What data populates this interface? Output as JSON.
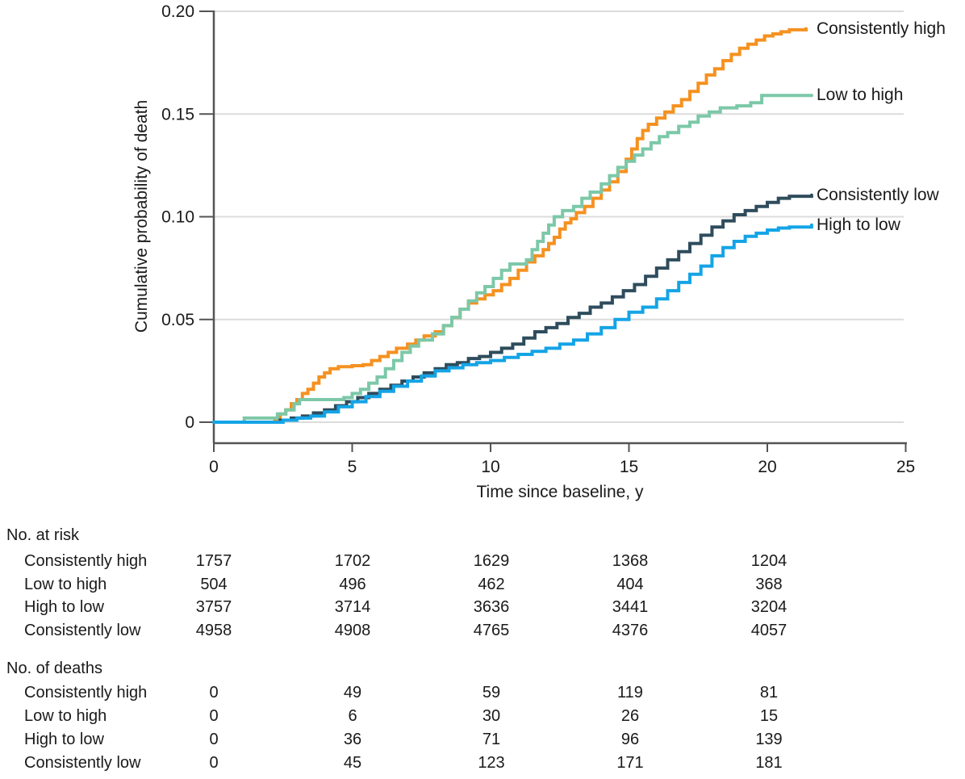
{
  "figure": {
    "y_axis": {
      "title": "Cumulative probability of death",
      "ticks": [
        "0",
        "0.05",
        "0.10",
        "0.15",
        "0.20"
      ],
      "tick_values": [
        0,
        0.05,
        0.1,
        0.15,
        0.2
      ],
      "max": 0.2
    },
    "x_axis": {
      "title": "Time since baseline, y",
      "ticks": [
        "0",
        "5",
        "10",
        "15",
        "20",
        "25"
      ],
      "tick_values": [
        0,
        5,
        10,
        15,
        20,
        25
      ],
      "max": 25
    }
  },
  "chart_data": {
    "type": "line",
    "subtype": "kaplan-meier-cumulative-incidence-step",
    "title": "",
    "xlabel": "Time since baseline, y",
    "ylabel": "Cumulative probability of death",
    "xlim": [
      0,
      25
    ],
    "ylim": [
      0,
      0.2
    ],
    "x_ticks": [
      0,
      5,
      10,
      15,
      20,
      25
    ],
    "y_ticks": [
      0,
      0.05,
      0.1,
      0.15,
      0.2
    ],
    "grid": "horizontal",
    "grid_color": "#dcdcdc",
    "axis_color": "#545456",
    "legend_position": "right-end-labels",
    "series": [
      {
        "name": "Consistently high",
        "color": "#F59120",
        "points": [
          [
            0,
            0
          ],
          [
            2.2,
            0.001
          ],
          [
            2.4,
            0.004
          ],
          [
            2.6,
            0.006
          ],
          [
            2.8,
            0.009
          ],
          [
            3.0,
            0.011
          ],
          [
            3.2,
            0.014
          ],
          [
            3.4,
            0.016
          ],
          [
            3.6,
            0.019
          ],
          [
            3.8,
            0.022
          ],
          [
            4.0,
            0.024
          ],
          [
            4.2,
            0.026
          ],
          [
            4.5,
            0.027
          ],
          [
            5.0,
            0.0275
          ],
          [
            5.4,
            0.028
          ],
          [
            5.7,
            0.03
          ],
          [
            6.0,
            0.032
          ],
          [
            6.3,
            0.034
          ],
          [
            6.6,
            0.036
          ],
          [
            7.0,
            0.038
          ],
          [
            7.3,
            0.04
          ],
          [
            7.6,
            0.042
          ],
          [
            8.0,
            0.044
          ],
          [
            8.3,
            0.047
          ],
          [
            8.6,
            0.051
          ],
          [
            8.9,
            0.055
          ],
          [
            9.2,
            0.058
          ],
          [
            9.5,
            0.06
          ],
          [
            9.8,
            0.062
          ],
          [
            10.1,
            0.064
          ],
          [
            10.4,
            0.067
          ],
          [
            10.7,
            0.07
          ],
          [
            11.0,
            0.074
          ],
          [
            11.3,
            0.078
          ],
          [
            11.6,
            0.081
          ],
          [
            11.9,
            0.084
          ],
          [
            12.1,
            0.087
          ],
          [
            12.3,
            0.09
          ],
          [
            12.5,
            0.094
          ],
          [
            12.7,
            0.097
          ],
          [
            12.9,
            0.099
          ],
          [
            13.1,
            0.102
          ],
          [
            13.4,
            0.105
          ],
          [
            13.7,
            0.109
          ],
          [
            14.0,
            0.113
          ],
          [
            14.3,
            0.117
          ],
          [
            14.6,
            0.122
          ],
          [
            14.9,
            0.128
          ],
          [
            15.1,
            0.133
          ],
          [
            15.3,
            0.138
          ],
          [
            15.5,
            0.142
          ],
          [
            15.7,
            0.145
          ],
          [
            16.0,
            0.148
          ],
          [
            16.3,
            0.151
          ],
          [
            16.6,
            0.154
          ],
          [
            16.9,
            0.157
          ],
          [
            17.2,
            0.161
          ],
          [
            17.5,
            0.165
          ],
          [
            17.8,
            0.169
          ],
          [
            18.1,
            0.172
          ],
          [
            18.4,
            0.176
          ],
          [
            18.7,
            0.179
          ],
          [
            19.0,
            0.182
          ],
          [
            19.3,
            0.184
          ],
          [
            19.6,
            0.186
          ],
          [
            19.9,
            0.188
          ],
          [
            20.2,
            0.189
          ],
          [
            20.5,
            0.19
          ],
          [
            20.8,
            0.191
          ],
          [
            21.4,
            0.1915
          ]
        ]
      },
      {
        "name": "Low to high",
        "color": "#7CC8A8",
        "points": [
          [
            0,
            0
          ],
          [
            1.1,
            0.002
          ],
          [
            2.3,
            0.004
          ],
          [
            2.6,
            0.006
          ],
          [
            2.9,
            0.009
          ],
          [
            3.1,
            0.011
          ],
          [
            4.7,
            0.012
          ],
          [
            5.0,
            0.014
          ],
          [
            5.3,
            0.016
          ],
          [
            5.6,
            0.019
          ],
          [
            5.9,
            0.022
          ],
          [
            6.2,
            0.026
          ],
          [
            6.5,
            0.03
          ],
          [
            6.8,
            0.034
          ],
          [
            7.1,
            0.037
          ],
          [
            7.4,
            0.04
          ],
          [
            7.9,
            0.043
          ],
          [
            8.3,
            0.047
          ],
          [
            8.6,
            0.051
          ],
          [
            8.9,
            0.055
          ],
          [
            9.2,
            0.059
          ],
          [
            9.5,
            0.063
          ],
          [
            9.8,
            0.066
          ],
          [
            10.1,
            0.07
          ],
          [
            10.4,
            0.074
          ],
          [
            10.7,
            0.077
          ],
          [
            11.3,
            0.079
          ],
          [
            11.5,
            0.084
          ],
          [
            11.7,
            0.088
          ],
          [
            11.9,
            0.092
          ],
          [
            12.1,
            0.096
          ],
          [
            12.3,
            0.1
          ],
          [
            12.6,
            0.103
          ],
          [
            13.0,
            0.105
          ],
          [
            13.3,
            0.109
          ],
          [
            13.6,
            0.112
          ],
          [
            14.0,
            0.116
          ],
          [
            14.3,
            0.12
          ],
          [
            14.6,
            0.124
          ],
          [
            14.9,
            0.127
          ],
          [
            15.2,
            0.13
          ],
          [
            15.5,
            0.133
          ],
          [
            15.8,
            0.136
          ],
          [
            16.1,
            0.139
          ],
          [
            16.4,
            0.141
          ],
          [
            16.8,
            0.144
          ],
          [
            17.2,
            0.146
          ],
          [
            17.5,
            0.149
          ],
          [
            17.9,
            0.151
          ],
          [
            18.3,
            0.153
          ],
          [
            18.9,
            0.154
          ],
          [
            19.4,
            0.1555
          ],
          [
            19.8,
            0.159
          ],
          [
            21.6,
            0.159
          ]
        ]
      },
      {
        "name": "Consistently low",
        "color": "#2E4C5C",
        "points": [
          [
            0,
            0
          ],
          [
            2.4,
            0.001
          ],
          [
            2.8,
            0.002
          ],
          [
            3.2,
            0.003
          ],
          [
            3.6,
            0.0045
          ],
          [
            4.0,
            0.006
          ],
          [
            4.4,
            0.008
          ],
          [
            4.8,
            0.01
          ],
          [
            5.2,
            0.012
          ],
          [
            5.6,
            0.014
          ],
          [
            6.0,
            0.016
          ],
          [
            6.4,
            0.018
          ],
          [
            6.8,
            0.02
          ],
          [
            7.2,
            0.022
          ],
          [
            7.6,
            0.024
          ],
          [
            8.0,
            0.026
          ],
          [
            8.4,
            0.028
          ],
          [
            8.8,
            0.029
          ],
          [
            9.2,
            0.031
          ],
          [
            9.6,
            0.032
          ],
          [
            10.0,
            0.034
          ],
          [
            10.4,
            0.036
          ],
          [
            10.8,
            0.038
          ],
          [
            11.2,
            0.041
          ],
          [
            11.6,
            0.044
          ],
          [
            12.0,
            0.046
          ],
          [
            12.4,
            0.048
          ],
          [
            12.8,
            0.051
          ],
          [
            13.2,
            0.053
          ],
          [
            13.6,
            0.056
          ],
          [
            14.0,
            0.058
          ],
          [
            14.4,
            0.061
          ],
          [
            14.8,
            0.064
          ],
          [
            15.2,
            0.067
          ],
          [
            15.6,
            0.071
          ],
          [
            16.0,
            0.075
          ],
          [
            16.4,
            0.079
          ],
          [
            16.8,
            0.083
          ],
          [
            17.2,
            0.087
          ],
          [
            17.6,
            0.091
          ],
          [
            18.0,
            0.095
          ],
          [
            18.4,
            0.098
          ],
          [
            18.8,
            0.101
          ],
          [
            19.2,
            0.103
          ],
          [
            19.6,
            0.105
          ],
          [
            20.0,
            0.107
          ],
          [
            20.4,
            0.109
          ],
          [
            20.8,
            0.11
          ],
          [
            21.6,
            0.1105
          ]
        ]
      },
      {
        "name": "High to low",
        "color": "#14A4E6",
        "points": [
          [
            0,
            0
          ],
          [
            2.5,
            0.001
          ],
          [
            3.0,
            0.002
          ],
          [
            3.5,
            0.003
          ],
          [
            4.0,
            0.005
          ],
          [
            4.5,
            0.0075
          ],
          [
            5.0,
            0.01
          ],
          [
            5.5,
            0.0125
          ],
          [
            6.0,
            0.015
          ],
          [
            6.5,
            0.0175
          ],
          [
            7.0,
            0.02
          ],
          [
            7.5,
            0.0225
          ],
          [
            8.0,
            0.025
          ],
          [
            8.5,
            0.0265
          ],
          [
            9.0,
            0.028
          ],
          [
            9.5,
            0.029
          ],
          [
            10.0,
            0.03
          ],
          [
            10.5,
            0.0315
          ],
          [
            11.0,
            0.033
          ],
          [
            11.5,
            0.0345
          ],
          [
            12.0,
            0.036
          ],
          [
            12.5,
            0.038
          ],
          [
            13.0,
            0.04
          ],
          [
            13.5,
            0.043
          ],
          [
            14.0,
            0.046
          ],
          [
            14.5,
            0.05
          ],
          [
            15.0,
            0.0535
          ],
          [
            15.5,
            0.056
          ],
          [
            16.0,
            0.06
          ],
          [
            16.4,
            0.064
          ],
          [
            16.8,
            0.068
          ],
          [
            17.2,
            0.072
          ],
          [
            17.6,
            0.076
          ],
          [
            18.0,
            0.081
          ],
          [
            18.4,
            0.085
          ],
          [
            18.8,
            0.088
          ],
          [
            19.2,
            0.0905
          ],
          [
            19.6,
            0.092
          ],
          [
            20.0,
            0.0935
          ],
          [
            20.4,
            0.0945
          ],
          [
            20.8,
            0.095
          ],
          [
            21.6,
            0.096
          ]
        ]
      }
    ]
  },
  "risk_table": {
    "title": "No. at risk",
    "time_points": [
      0,
      5,
      10,
      15,
      20
    ],
    "rows": [
      {
        "label": "Consistently high",
        "values": [
          "1757",
          "1702",
          "1629",
          "1368",
          "1204"
        ]
      },
      {
        "label": "Low to high",
        "values": [
          "504",
          "496",
          "462",
          "404",
          "368"
        ]
      },
      {
        "label": "High to low",
        "values": [
          "3757",
          "3714",
          "3636",
          "3441",
          "3204"
        ]
      },
      {
        "label": "Consistently low",
        "values": [
          "4958",
          "4908",
          "4765",
          "4376",
          "4057"
        ]
      }
    ]
  },
  "deaths_table": {
    "title": "No. of deaths",
    "rows": [
      {
        "label": "Consistently high",
        "values": [
          "0",
          "49",
          "59",
          "119",
          "81"
        ]
      },
      {
        "label": "Low to high",
        "values": [
          "0",
          "6",
          "30",
          "26",
          "15"
        ]
      },
      {
        "label": "High to low",
        "values": [
          "0",
          "36",
          "71",
          "96",
          "139"
        ]
      },
      {
        "label": "Consistently low",
        "values": [
          "0",
          "45",
          "123",
          "171",
          "181"
        ]
      }
    ]
  }
}
